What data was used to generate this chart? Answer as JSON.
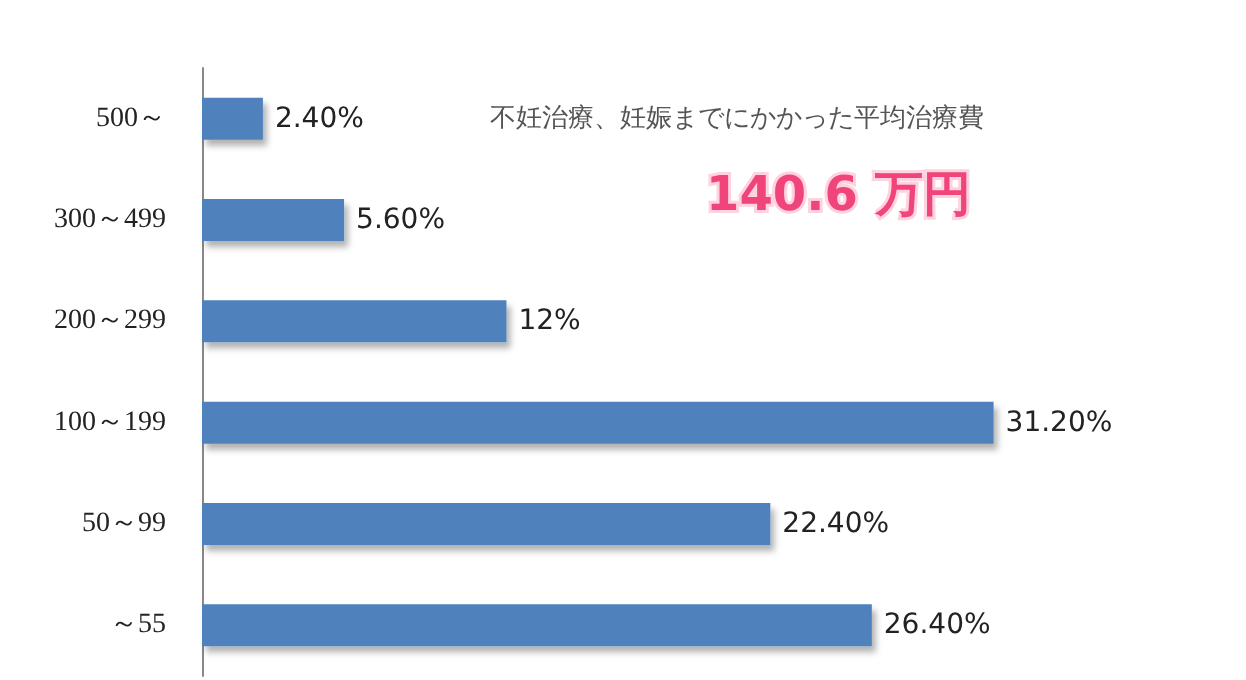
{
  "chart_data": {
    "type": "bar",
    "orientation": "horizontal",
    "title": "不妊治療、妊娠までにかかった平均治療費",
    "subtitle": "140.6 万円",
    "categories": [
      "500～",
      "300～499",
      "200～299",
      "100～199",
      "50～99",
      "～55"
    ],
    "values": [
      2.4,
      5.6,
      12,
      31.2,
      22.4,
      26.4
    ],
    "value_labels": [
      "2.40%",
      "5.60%",
      "12%",
      "31.20%",
      "22.40%",
      "26.40%"
    ],
    "color": "#4f81bd",
    "grid": false
  }
}
